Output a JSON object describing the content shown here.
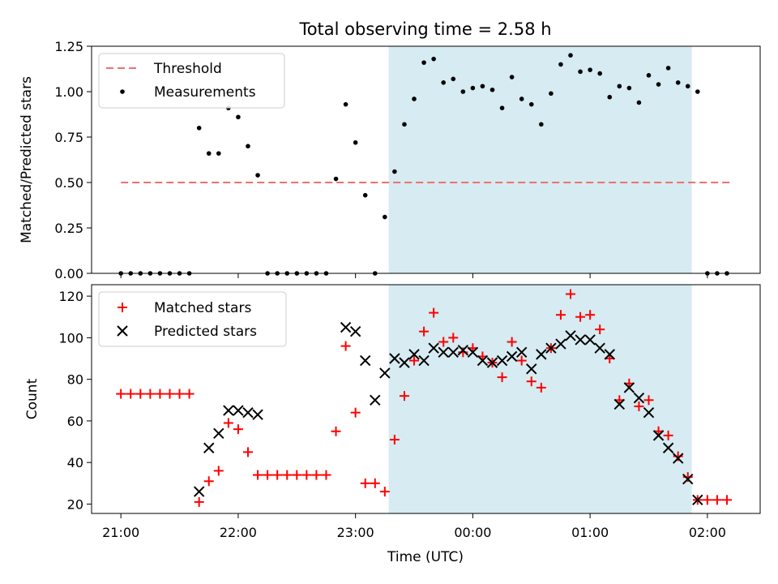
{
  "figure_title": "Total observing time = 2.58 h",
  "colors": {
    "threshold": "#f07070",
    "measurement": "#000000",
    "matched": "#ff0000",
    "predicted": "#000000",
    "shade": "#add8e6"
  },
  "chart_data": [
    {
      "type": "scatter",
      "title": "Total observing time = 2.58 h",
      "xlabel": "",
      "ylabel": "Matched/Predicted stars",
      "ylim": [
        0,
        1.25
      ],
      "xlim": [
        -0.25,
        5.45
      ],
      "x_unit": "hours since 21:00 UTC",
      "yticks": [
        0,
        0.25,
        0.5,
        0.75,
        1.0,
        1.25
      ],
      "ytick_labels": [
        "0.00",
        "0.25",
        "0.50",
        "0.75",
        "1.00",
        "1.25"
      ],
      "legend_position": "top-left",
      "shaded_interval": [
        "23:17",
        "01:52"
      ],
      "threshold": {
        "name": "Threshold",
        "value": 0.5,
        "x_range": [
          "21:00",
          "02:12"
        ]
      },
      "series": [
        {
          "name": "Measurements",
          "x": [
            "21:00",
            "21:05",
            "21:10",
            "21:15",
            "21:20",
            "21:25",
            "21:30",
            "21:35",
            "21:40",
            "21:45",
            "21:50",
            "21:55",
            "22:00",
            "22:05",
            "22:10",
            "22:15",
            "22:20",
            "22:25",
            "22:30",
            "22:35",
            "22:40",
            "22:45",
            "22:50",
            "22:55",
            "23:00",
            "23:05",
            "23:10",
            "23:15",
            "23:20",
            "23:25",
            "23:30",
            "23:35",
            "23:40",
            "23:45",
            "23:50",
            "23:55",
            "00:00",
            "00:05",
            "00:10",
            "00:15",
            "00:20",
            "00:25",
            "00:30",
            "00:35",
            "00:40",
            "00:45",
            "00:50",
            "00:55",
            "01:00",
            "01:05",
            "01:10",
            "01:15",
            "01:20",
            "01:25",
            "01:30",
            "01:35",
            "01:40",
            "01:45",
            "01:50",
            "01:55",
            "02:00",
            "02:05",
            "02:10"
          ],
          "y": [
            0,
            0,
            0,
            0,
            0,
            0,
            0,
            0,
            0.8,
            0.66,
            0.66,
            0.91,
            0.86,
            0.7,
            0.54,
            0,
            0,
            0,
            0,
            0,
            0,
            0,
            0.52,
            0.93,
            0.72,
            0.43,
            0,
            0.31,
            0.56,
            0.82,
            0.96,
            1.16,
            1.18,
            1.05,
            1.07,
            1.0,
            1.02,
            1.03,
            1.01,
            0.91,
            1.08,
            0.96,
            0.93,
            0.82,
            0.99,
            1.15,
            1.2,
            1.11,
            1.12,
            1.1,
            0.97,
            1.03,
            1.02,
            0.94,
            1.09,
            1.04,
            1.13,
            1.05,
            1.03,
            1.0,
            0,
            0,
            0
          ]
        }
      ]
    },
    {
      "type": "scatter",
      "title": "",
      "xlabel": "Time (UTC)",
      "ylabel": "Count",
      "ylim": [
        15.5,
        125.5
      ],
      "xlim": [
        -0.25,
        5.45
      ],
      "yticks": [
        20,
        40,
        60,
        80,
        100,
        120
      ],
      "xticks": [
        "21:00",
        "22:00",
        "23:00",
        "00:00",
        "01:00",
        "02:00"
      ],
      "legend_position": "top-left",
      "shaded_interval": [
        "23:17",
        "01:52"
      ],
      "series": [
        {
          "name": "Matched stars",
          "x": [
            "21:00",
            "21:05",
            "21:10",
            "21:15",
            "21:20",
            "21:25",
            "21:30",
            "21:35",
            "21:40",
            "21:45",
            "21:50",
            "21:55",
            "22:00",
            "22:05",
            "22:10",
            "22:15",
            "22:20",
            "22:25",
            "22:30",
            "22:35",
            "22:40",
            "22:45",
            "22:50",
            "22:55",
            "23:00",
            "23:05",
            "23:10",
            "23:15",
            "23:20",
            "23:25",
            "23:30",
            "23:35",
            "23:40",
            "23:45",
            "23:50",
            "23:55",
            "00:00",
            "00:05",
            "00:10",
            "00:15",
            "00:20",
            "00:25",
            "00:30",
            "00:35",
            "00:40",
            "00:45",
            "00:50",
            "00:55",
            "01:00",
            "01:05",
            "01:10",
            "01:15",
            "01:20",
            "01:25",
            "01:30",
            "01:35",
            "01:40",
            "01:45",
            "01:50",
            "01:55",
            "02:00",
            "02:05",
            "02:10"
          ],
          "y": [
            73,
            73,
            73,
            73,
            73,
            73,
            73,
            73,
            21,
            31,
            36,
            59,
            56,
            45,
            34,
            34,
            34,
            34,
            34,
            34,
            34,
            34,
            55,
            96,
            64,
            30,
            30,
            26,
            51,
            72,
            89,
            103,
            112,
            98,
            100,
            93,
            95,
            91,
            88,
            81,
            98,
            89,
            79,
            76,
            95,
            111,
            121,
            110,
            111,
            104,
            90,
            70,
            78,
            67,
            70,
            55,
            53,
            43,
            33,
            22,
            22,
            22,
            22
          ]
        },
        {
          "name": "Predicted stars",
          "x": [
            "21:40",
            "21:45",
            "21:50",
            "21:55",
            "22:00",
            "22:05",
            "22:10",
            "22:55",
            "23:00",
            "23:05",
            "23:10",
            "23:15",
            "23:20",
            "23:25",
            "23:30",
            "23:35",
            "23:40",
            "23:45",
            "23:50",
            "23:55",
            "00:00",
            "00:05",
            "00:10",
            "00:15",
            "00:20",
            "00:25",
            "00:30",
            "00:35",
            "00:40",
            "00:45",
            "00:50",
            "00:55",
            "01:00",
            "01:05",
            "01:10",
            "01:15",
            "01:20",
            "01:25",
            "01:30",
            "01:35",
            "01:40",
            "01:45",
            "01:50",
            "01:55"
          ],
          "y": [
            26,
            47,
            54,
            65,
            65,
            64,
            63,
            105,
            103,
            89,
            70,
            83,
            90,
            88,
            92,
            89,
            95,
            93,
            93,
            94,
            93,
            89,
            88,
            89,
            91,
            93,
            85,
            92,
            95,
            97,
            101,
            99,
            99,
            95,
            92,
            68,
            76,
            71,
            64,
            53,
            47,
            42,
            32,
            22
          ]
        }
      ]
    }
  ]
}
